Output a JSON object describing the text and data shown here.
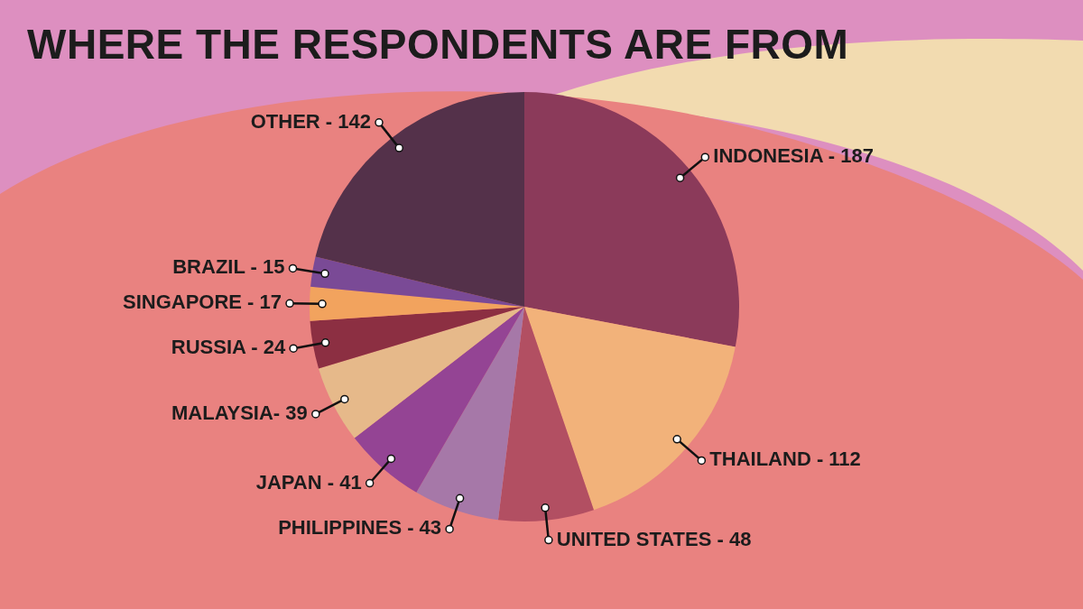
{
  "chart_data": {
    "type": "pie",
    "title": "WHERE THE RESPONDENTS ARE FROM",
    "categories": [
      "INDONESIA -",
      "THAILAND -",
      "UNITED STATES -",
      "PHILIPPINES -",
      "JAPAN -",
      "MALAYSIA-",
      "RUSSIA -",
      "SINGAPORE -",
      "BRAZIL -",
      "OTHER -"
    ],
    "value_labels": [
      "187",
      "112",
      "48",
      "43",
      "41",
      "39",
      "24",
      "17",
      "15",
      "142"
    ],
    "values": [
      187,
      112,
      48,
      43,
      41,
      39,
      24,
      17,
      15,
      142
    ],
    "colors": [
      "#8b3a5a",
      "#f2b27a",
      "#b24f62",
      "#a678a8",
      "#944494",
      "#e6b98a",
      "#8c2f42",
      "#f2a35e",
      "#7a4a96",
      "#54314a"
    ],
    "legend": false
  }
}
